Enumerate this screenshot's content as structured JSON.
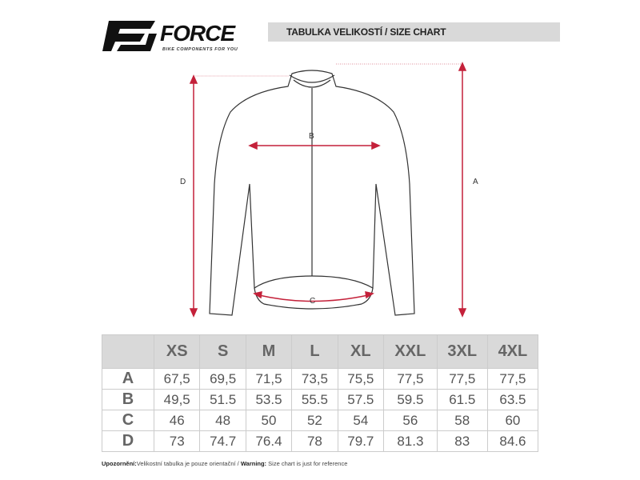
{
  "header": {
    "brand": "FORCE",
    "tagline": "BIKE COMPONENTS FOR YOU",
    "title": "TABULKA VELIKOSTÍ / SIZE CHART"
  },
  "diagram": {
    "labels": {
      "A": "A",
      "B": "B",
      "C": "C",
      "D": "D"
    },
    "accent_color": "#c4213a"
  },
  "table": {
    "columns": [
      "XS",
      "S",
      "M",
      "L",
      "XL",
      "XXL",
      "3XL",
      "4XL"
    ],
    "rows": [
      {
        "label": "A",
        "values": [
          "67,5",
          "69,5",
          "71,5",
          "73,5",
          "75,5",
          "77,5",
          "77,5",
          "77,5"
        ]
      },
      {
        "label": "B",
        "values": [
          "49,5",
          "51.5",
          "53.5",
          "55.5",
          "57.5",
          "59.5",
          "61.5",
          "63.5"
        ]
      },
      {
        "label": "C",
        "values": [
          "46",
          "48",
          "50",
          "52",
          "54",
          "56",
          "58",
          "60"
        ]
      },
      {
        "label": "D",
        "values": [
          "73",
          "74.7",
          "76.4",
          "78",
          "79.7",
          "81.3",
          "83",
          "84.6"
        ]
      }
    ]
  },
  "footer": {
    "warn_cz_label": "Upozornění:",
    "warn_cz_text": "Velikostní tabulka je pouze orientační / ",
    "warn_en_label": "Warning:",
    "warn_en_text": "Size chart is just for reference"
  }
}
